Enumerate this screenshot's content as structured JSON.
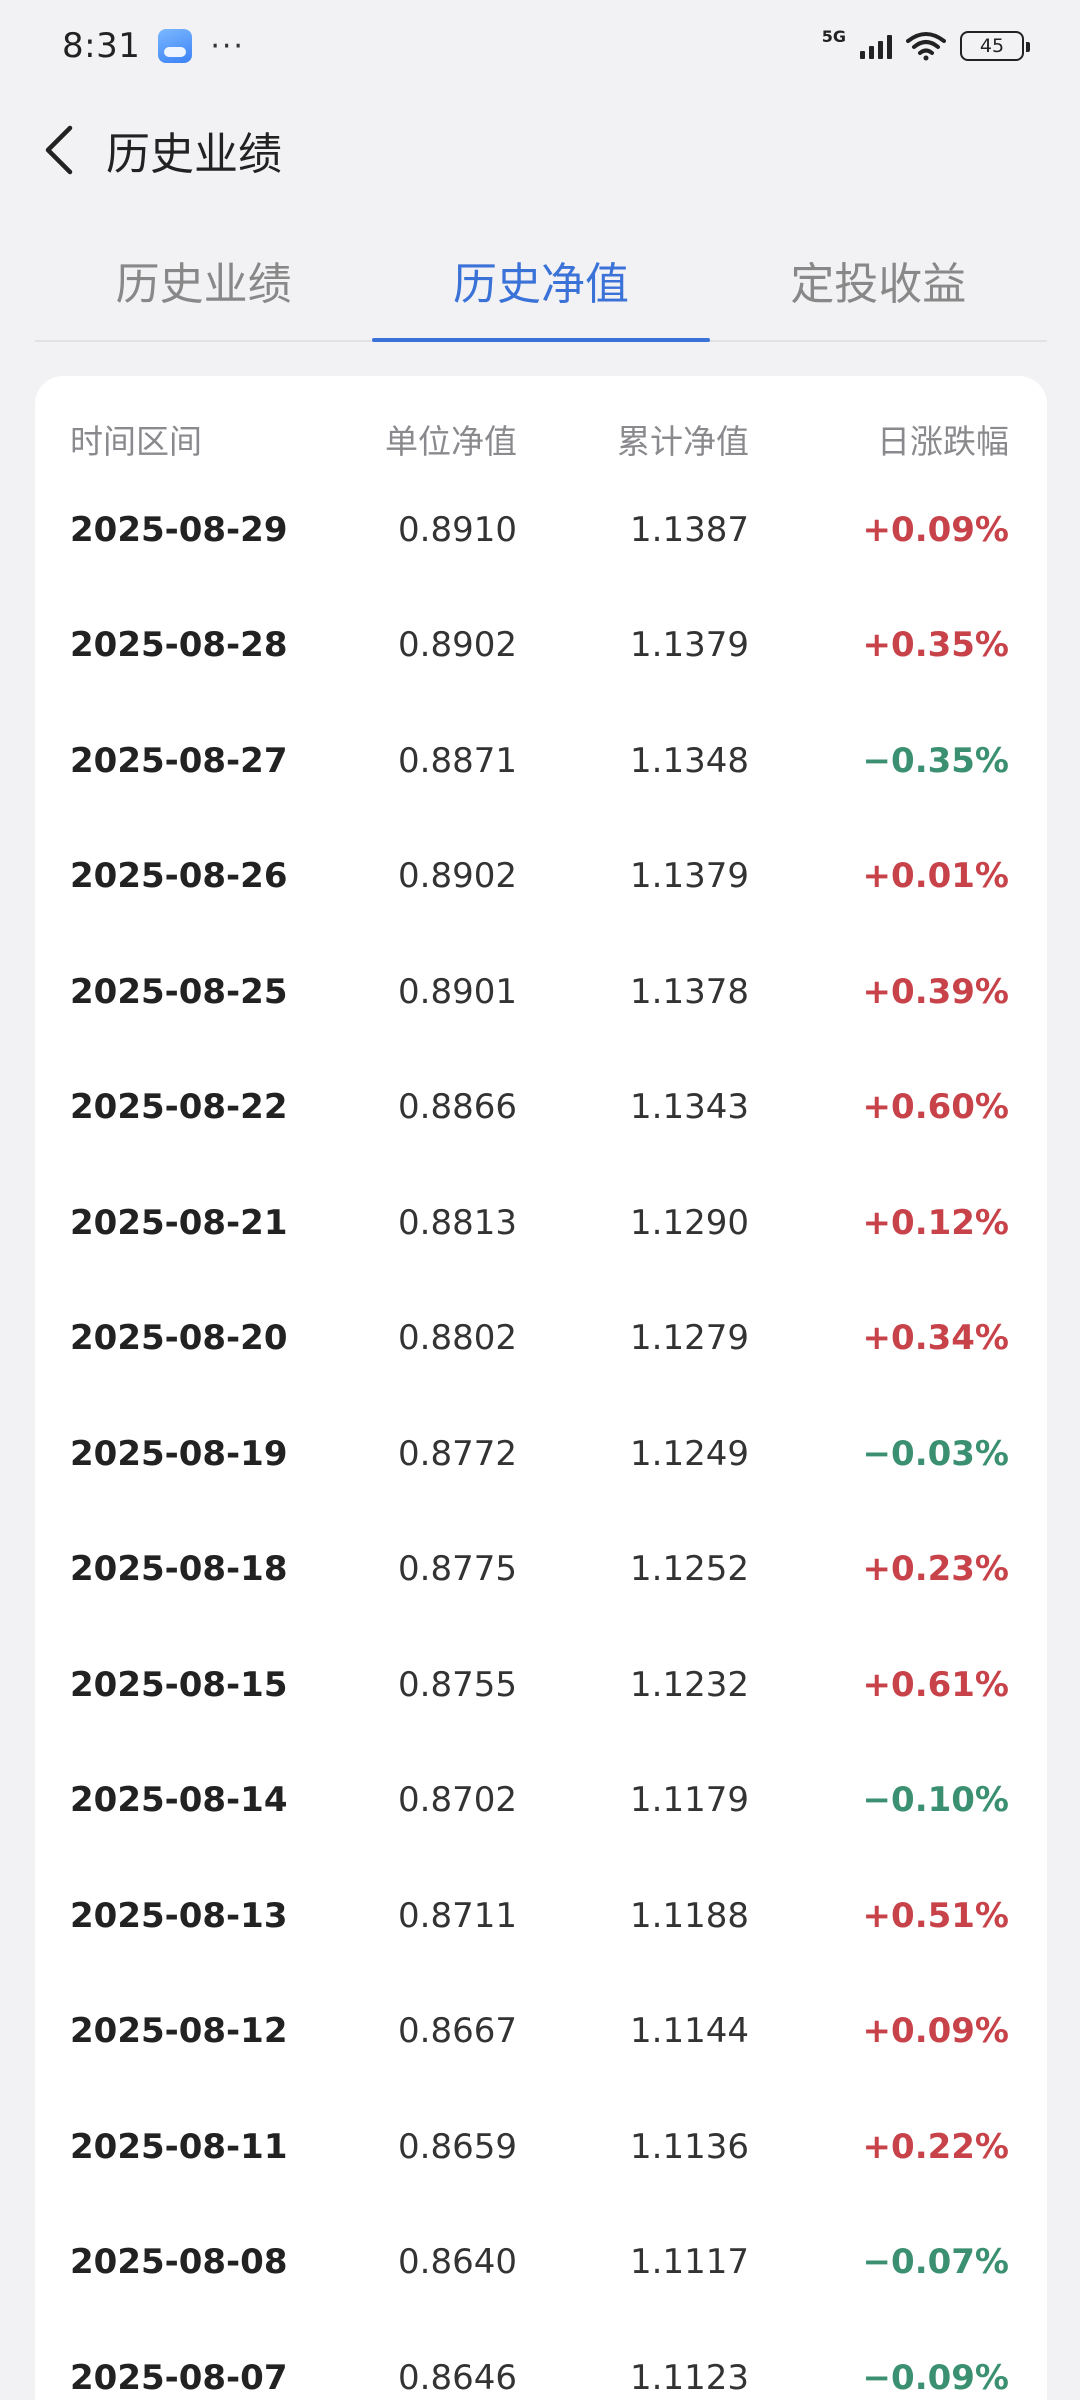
{
  "status_bar": {
    "time": "8:31",
    "weather_icon": "weather-icon",
    "more": "···",
    "network": "5G",
    "battery": "45"
  },
  "header": {
    "back_icon": "chevron-left-icon",
    "title": "历史业绩"
  },
  "tabs": [
    {
      "label": "历史业绩",
      "active": false
    },
    {
      "label": "历史净值",
      "active": true
    },
    {
      "label": "定投收益",
      "active": false
    }
  ],
  "table": {
    "columns": {
      "date": "时间区间",
      "unit_nav": "单位净值",
      "acc_nav": "累计净值",
      "daily_change": "日涨跌幅"
    },
    "colors": {
      "up": "#c8424a",
      "down": "#3a9070"
    },
    "rows": [
      {
        "date": "2025-08-29",
        "unit": "0.8910",
        "acc": "1.1387",
        "chg": "+0.09%",
        "dir": "up"
      },
      {
        "date": "2025-08-28",
        "unit": "0.8902",
        "acc": "1.1379",
        "chg": "+0.35%",
        "dir": "up"
      },
      {
        "date": "2025-08-27",
        "unit": "0.8871",
        "acc": "1.1348",
        "chg": "−0.35%",
        "dir": "down"
      },
      {
        "date": "2025-08-26",
        "unit": "0.8902",
        "acc": "1.1379",
        "chg": "+0.01%",
        "dir": "up"
      },
      {
        "date": "2025-08-25",
        "unit": "0.8901",
        "acc": "1.1378",
        "chg": "+0.39%",
        "dir": "up"
      },
      {
        "date": "2025-08-22",
        "unit": "0.8866",
        "acc": "1.1343",
        "chg": "+0.60%",
        "dir": "up"
      },
      {
        "date": "2025-08-21",
        "unit": "0.8813",
        "acc": "1.1290",
        "chg": "+0.12%",
        "dir": "up"
      },
      {
        "date": "2025-08-20",
        "unit": "0.8802",
        "acc": "1.1279",
        "chg": "+0.34%",
        "dir": "up"
      },
      {
        "date": "2025-08-19",
        "unit": "0.8772",
        "acc": "1.1249",
        "chg": "−0.03%",
        "dir": "down"
      },
      {
        "date": "2025-08-18",
        "unit": "0.8775",
        "acc": "1.1252",
        "chg": "+0.23%",
        "dir": "up"
      },
      {
        "date": "2025-08-15",
        "unit": "0.8755",
        "acc": "1.1232",
        "chg": "+0.61%",
        "dir": "up"
      },
      {
        "date": "2025-08-14",
        "unit": "0.8702",
        "acc": "1.1179",
        "chg": "−0.10%",
        "dir": "down"
      },
      {
        "date": "2025-08-13",
        "unit": "0.8711",
        "acc": "1.1188",
        "chg": "+0.51%",
        "dir": "up"
      },
      {
        "date": "2025-08-12",
        "unit": "0.8667",
        "acc": "1.1144",
        "chg": "+0.09%",
        "dir": "up"
      },
      {
        "date": "2025-08-11",
        "unit": "0.8659",
        "acc": "1.1136",
        "chg": "+0.22%",
        "dir": "up"
      },
      {
        "date": "2025-08-08",
        "unit": "0.8640",
        "acc": "1.1117",
        "chg": "−0.07%",
        "dir": "down"
      },
      {
        "date": "2025-08-07",
        "unit": "0.8646",
        "acc": "1.1123",
        "chg": "−0.09%",
        "dir": "down"
      }
    ]
  }
}
